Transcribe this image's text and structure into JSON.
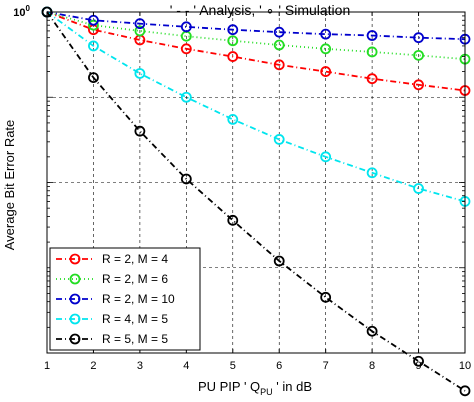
{
  "chart_data": {
    "type": "line",
    "title": "' - - ' Analysis, ' ∘ ' Simulation",
    "xlabel_parts": {
      "before": "PU PIP ' Q",
      "sub": "PU",
      "after": " ' in dB"
    },
    "ylabel": "Average Bit Error Rate",
    "x": [
      1,
      2,
      3,
      4,
      5,
      6,
      7,
      8,
      9,
      10
    ],
    "x_ticks": [
      "1",
      "2",
      "3",
      "4",
      "5",
      "6",
      "7",
      "8",
      "9",
      "10"
    ],
    "xlim": [
      1,
      10
    ],
    "ylim_log10": [
      -4,
      0
    ],
    "y_scale": "log",
    "y_tick_label": {
      "base": "10",
      "exp": "0"
    },
    "grid": true,
    "legend_position": "lower-left",
    "series": [
      {
        "name": "R = 2, M = 4",
        "color": "#ff0000",
        "dash": "6,3,1,3",
        "y": [
          1.0,
          0.62,
          0.47,
          0.37,
          0.3,
          0.24,
          0.2,
          0.165,
          0.14,
          0.12
        ]
      },
      {
        "name": "R = 2, M = 6",
        "color": "#22dd22",
        "dash": "1,3",
        "y": [
          1.0,
          0.7,
          0.6,
          0.52,
          0.46,
          0.41,
          0.37,
          0.34,
          0.31,
          0.28
        ]
      },
      {
        "name": "R = 2, M = 10",
        "color": "#0000cc",
        "dash": "6,3,1,3",
        "y": [
          1.0,
          0.8,
          0.73,
          0.67,
          0.62,
          0.58,
          0.55,
          0.53,
          0.5,
          0.48
        ]
      },
      {
        "name": "R = 4, M = 5",
        "color": "#00e5ee",
        "dash": "6,3,1,3",
        "y": [
          1.0,
          0.4,
          0.19,
          0.1,
          0.055,
          0.032,
          0.02,
          0.013,
          0.0085,
          0.006
        ]
      },
      {
        "name": "R = 5, M = 5",
        "color": "#000000",
        "dash": "6,3,1,3",
        "y": [
          1.0,
          0.17,
          0.04,
          0.011,
          0.0036,
          0.0012,
          0.00045,
          0.00018,
          8e-05,
          3.6e-05
        ]
      }
    ]
  }
}
